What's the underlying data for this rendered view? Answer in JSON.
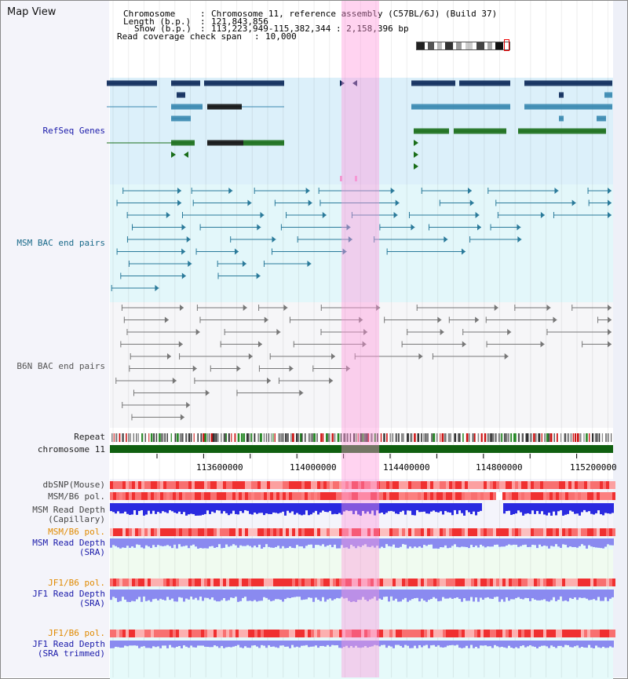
{
  "panel_title": "Map View",
  "header": {
    "chromosome_label": "Chromosome",
    "chromosome_value": "Chromosome 11, reference assembly (C57BL/6J) (Build 37)",
    "length_label": "Length (b.p.)",
    "length_value": "121,843,856",
    "show_label": "Show (b.p.)",
    "show_value": "113,223,949-115,382,344 : 2,158,396 bp",
    "coverage_label": "Read coverage check span",
    "coverage_value": "10,000"
  },
  "tracks": {
    "refseq": "RefSeq Genes",
    "msm_bac": "MSM BAC end pairs",
    "b6n_bac": "B6N BAC end pairs",
    "repeat": "Repeat",
    "chromosome": "chromosome 11",
    "dbsnp": "dbSNP(Mouse)",
    "msm_b6_pol_1": "MSM/B6 pol.",
    "msm_read_depth_cap_1": "MSM Read Depth",
    "msm_read_depth_cap_2": "(Capillary)",
    "msm_b6_pol_2": "MSM/B6 pol.",
    "msm_read_depth_sra_1": "MSM Read Depth",
    "msm_read_depth_sra_2": "(SRA)",
    "jf1_b6_pol_1": "JF1/B6 pol.",
    "jf1_read_depth_sra_1": "JF1 Read Depth",
    "jf1_read_depth_sra_2": "(SRA)",
    "jf1_b6_pol_2": "JF1/B6 pol.",
    "jf1_read_depth_trim_1": "JF1 Read Depth",
    "jf1_read_depth_trim_2": "(SRA trimmed)"
  },
  "coordinates": [
    "113600000",
    "114000000",
    "114400000",
    "114800000",
    "115200000"
  ],
  "colors": {
    "label_blue": "#1a1aaa",
    "label_teal": "#1a6a8a",
    "label_gray": "#444444",
    "label_orange": "#e08a00",
    "refseq_navy": "#0d2a5a",
    "refseq_steel": "#3a88b0",
    "refseq_green": "#1a6e1a",
    "msm_line": "#2a7a9a",
    "b6n_line": "#777777",
    "chromosome_bar": "#106010",
    "depth_blue": "#2a2ae0",
    "depth_light": "#8a8af0"
  }
}
